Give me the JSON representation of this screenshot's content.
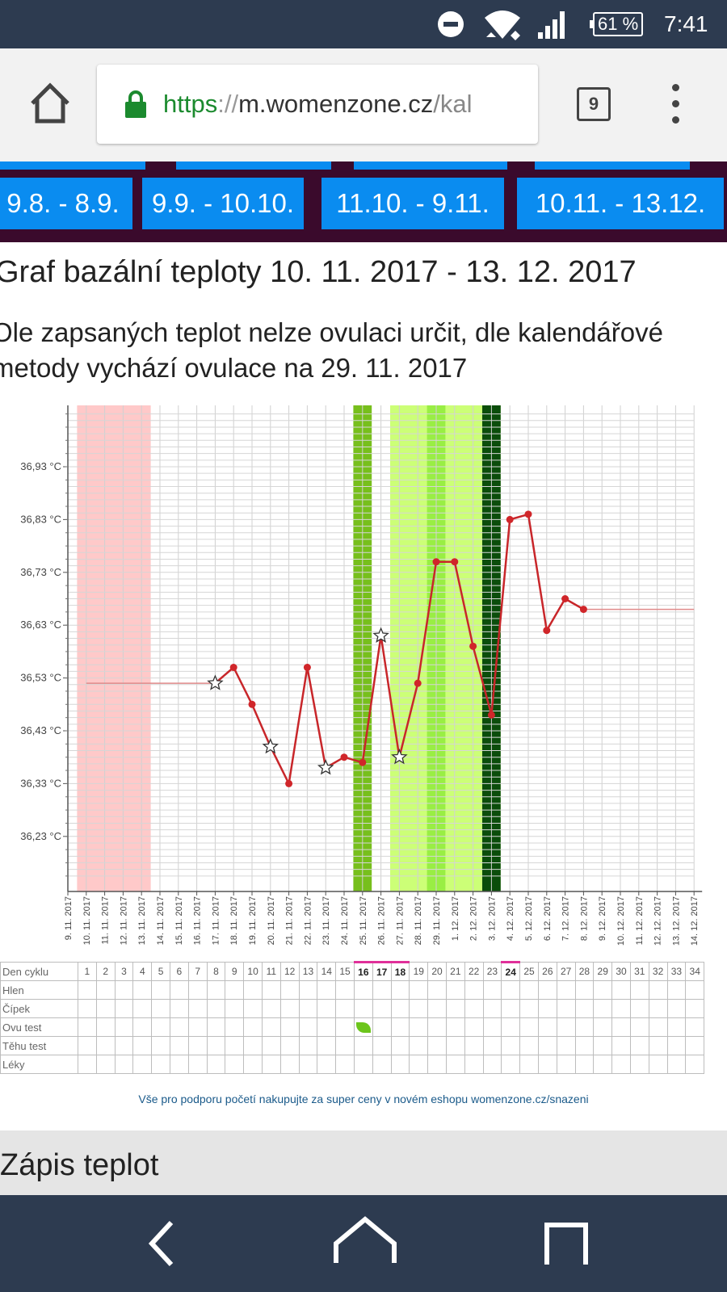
{
  "status_bar": {
    "battery": "61 %",
    "time": "7:41",
    "icons": [
      "do-not-disturb-icon",
      "wifi-icon",
      "signal-icon",
      "battery-icon"
    ]
  },
  "browser": {
    "url_scheme": "https",
    "url_sep": "://",
    "url_host": "m.womenzone.cz",
    "url_path": "/kal",
    "tab_count": "9",
    "icons": [
      "home-icon",
      "lock-icon",
      "tabs-icon",
      "overflow-menu-icon"
    ]
  },
  "cycle_nav": [
    "9.8. - 8.9.",
    "9.9. - 10.10.",
    "11.10. - 9.11.",
    "10.11. - 13.12."
  ],
  "title": "Graf bazální teploty 10. 11. 2017 - 13. 12. 2017",
  "description_line1": "Ole zapsaných teplot nelze ovulaci určit, dle kalendářové",
  "description_line2": "metody vychází ovulace na 29. 11. 2017",
  "chart_data": {
    "type": "line",
    "yticks": [
      "36,93 °C",
      "36,83 °C",
      "36,73 °C",
      "36,63 °C",
      "36,53 °C",
      "36,43 °C",
      "36,33 °C",
      "36,23 °C"
    ],
    "ytick_values": [
      36.93,
      36.83,
      36.73,
      36.63,
      36.53,
      36.43,
      36.33,
      36.23
    ],
    "ylim": [
      36.13,
      37.03
    ],
    "dates": [
      "9. 11. 2017",
      "10. 11. 2017",
      "11. 11. 2017",
      "12. 11. 2017",
      "13. 11. 2017",
      "14. 11. 2017",
      "15. 11. 2017",
      "16. 11. 2017",
      "17. 11. 2017",
      "18. 11. 2017",
      "19. 11. 2017",
      "20. 11. 2017",
      "21. 11. 2017",
      "22. 11. 2017",
      "23. 11. 2017",
      "24. 11. 2017",
      "25. 11. 2017",
      "26. 11. 2017",
      "27. 11. 2017",
      "28. 11. 2017",
      "29. 11. 2017",
      "1. 12. 2017",
      "2. 12. 2017",
      "3. 12. 2017",
      "4. 12. 2017",
      "5. 12. 2017",
      "6. 12. 2017",
      "7. 12. 2017",
      "8. 12. 2017",
      "9. 12. 2017",
      "10. 12. 2017",
      "11. 12. 2017",
      "12. 12. 2017",
      "13. 12. 2017",
      "14. 12. 2017"
    ],
    "menstruation_days": [
      1,
      4
    ],
    "fertile_bands": [
      {
        "from": 16,
        "to": 16,
        "color": "#77bf1c"
      },
      {
        "from": 18,
        "to": 23,
        "color": "#ccff77"
      },
      {
        "from": 20,
        "to": 20,
        "color": "#99ee44"
      },
      {
        "from": 23,
        "to": 23,
        "color": "#0b4d0b"
      }
    ],
    "series": [
      {
        "values": [
          {
            "day": 8,
            "temp": 36.52,
            "marker": "star"
          },
          {
            "day": 9,
            "temp": 36.55,
            "marker": "dot"
          },
          {
            "day": 10,
            "temp": 36.48,
            "marker": "dot"
          },
          {
            "day": 11,
            "temp": 36.4,
            "marker": "star"
          },
          {
            "day": 12,
            "temp": 36.33,
            "marker": "dot"
          },
          {
            "day": 13,
            "temp": 36.55,
            "marker": "dot"
          },
          {
            "day": 14,
            "temp": 36.36,
            "marker": "star"
          },
          {
            "day": 15,
            "temp": 36.38,
            "marker": "dot"
          },
          {
            "day": 16,
            "temp": 36.37,
            "marker": "dot"
          },
          {
            "day": 17,
            "temp": 36.61,
            "marker": "star"
          },
          {
            "day": 18,
            "temp": 36.38,
            "marker": "star"
          },
          {
            "day": 19,
            "temp": 36.52,
            "marker": "dot"
          },
          {
            "day": 20,
            "temp": 36.75,
            "marker": "dot"
          },
          {
            "day": 21,
            "temp": 36.75,
            "marker": "dot"
          },
          {
            "day": 22,
            "temp": 36.59,
            "marker": "dot"
          },
          {
            "day": 23,
            "temp": 36.46,
            "marker": "dot"
          },
          {
            "day": 24,
            "temp": 36.83,
            "marker": "dot"
          },
          {
            "day": 25,
            "temp": 36.84,
            "marker": "dot"
          },
          {
            "day": 26,
            "temp": 36.62,
            "marker": "dot"
          },
          {
            "day": 27,
            "temp": 36.68,
            "marker": "dot"
          },
          {
            "day": 28,
            "temp": 36.66,
            "marker": "dot"
          }
        ]
      }
    ],
    "coverline_before": {
      "from_day": 1,
      "to_day": 8,
      "temp": 36.52
    },
    "coverline_after": {
      "from_day": 28,
      "to_day": 34,
      "temp": 36.66
    }
  },
  "table": {
    "row_labels": [
      "Den cyklu",
      "Hlen",
      "Čípek",
      "Ovu test",
      "Těhu test",
      "Léky"
    ],
    "cycle_days": [
      "1",
      "2",
      "3",
      "4",
      "5",
      "6",
      "7",
      "8",
      "9",
      "10",
      "11",
      "12",
      "13",
      "14",
      "15",
      "16",
      "17",
      "18",
      "19",
      "20",
      "21",
      "22",
      "23",
      "24",
      "25",
      "26",
      "27",
      "28",
      "29",
      "30",
      "31",
      "32",
      "33",
      "34"
    ],
    "marked_days": [
      16,
      17,
      18,
      24
    ],
    "ovu_test_day": 16
  },
  "promo": "Vše pro podporu početí nakupujte za super ceny v novém eshopu womenzone.cz/snazeni",
  "section_title": "Zápis teplot",
  "colors": {
    "status_bar": "#2d3b50",
    "nav_button": "#0a8cf0",
    "nav_bg": "#3a0a2c",
    "line": "#c8262a",
    "menstruation": "#ffc9c9"
  }
}
